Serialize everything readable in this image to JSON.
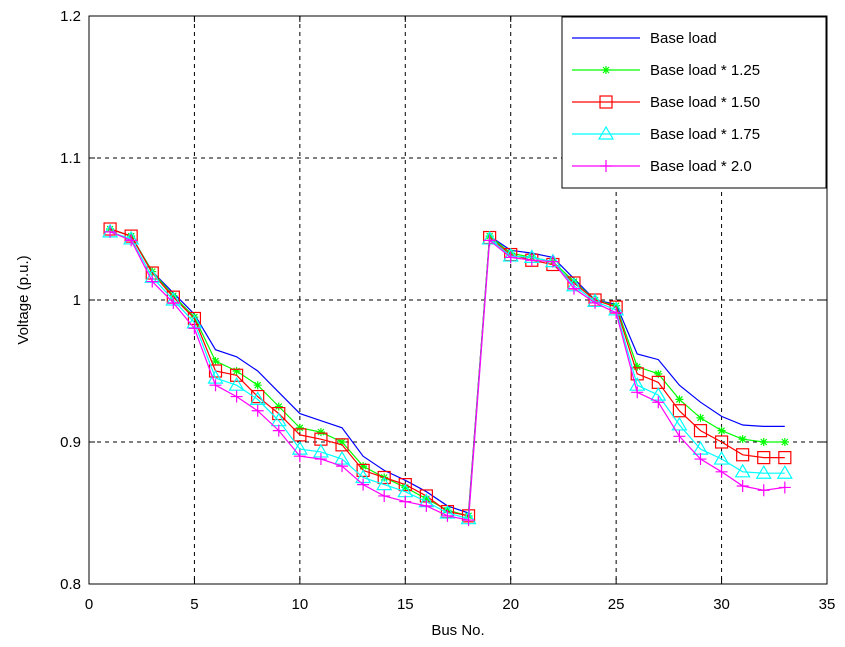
{
  "chart_data": {
    "type": "line",
    "xlabel": "Bus No.",
    "ylabel": "Voltage (p.u.)",
    "xlim": [
      0,
      35
    ],
    "ylim": [
      0.8,
      1.2
    ],
    "xticks": [
      0,
      5,
      10,
      15,
      20,
      25,
      30,
      35
    ],
    "yticks": [
      0.8,
      0.9,
      1,
      1.1,
      1.2
    ],
    "xtick_labels": [
      "0",
      "5",
      "10",
      "15",
      "20",
      "25",
      "30",
      "35"
    ],
    "ytick_labels": [
      "0.8",
      "0.9",
      "1",
      "1.1",
      "1.2"
    ],
    "grid": true,
    "legend_position": "top-right",
    "x": [
      1,
      2,
      3,
      4,
      5,
      6,
      7,
      8,
      9,
      10,
      11,
      12,
      13,
      14,
      15,
      16,
      17,
      18,
      19,
      20,
      21,
      22,
      23,
      24,
      25,
      26,
      27,
      28,
      29,
      30,
      31,
      32,
      33
    ],
    "series": [
      {
        "name": "Base load",
        "color": "#0000ff",
        "marker": "none",
        "values": [
          1.05,
          1.045,
          1.02,
          1.005,
          0.99,
          0.965,
          0.96,
          0.95,
          0.935,
          0.92,
          0.915,
          0.91,
          0.89,
          0.88,
          0.873,
          0.865,
          0.855,
          0.85,
          1.045,
          1.035,
          1.033,
          1.03,
          1.015,
          1.0,
          0.997,
          0.962,
          0.958,
          0.94,
          0.928,
          0.918,
          0.912,
          0.911,
          0.911
        ]
      },
      {
        "name": "Base load * 1.25",
        "color": "#00ff00",
        "marker": "star",
        "values": [
          1.05,
          1.045,
          1.02,
          1.003,
          0.988,
          0.957,
          0.95,
          0.94,
          0.925,
          0.91,
          0.907,
          0.9,
          0.883,
          0.875,
          0.868,
          0.86,
          0.852,
          0.848,
          1.045,
          1.033,
          1.03,
          1.027,
          1.013,
          1.0,
          0.996,
          0.953,
          0.948,
          0.93,
          0.917,
          0.908,
          0.902,
          0.9,
          0.9
        ]
      },
      {
        "name": "Base load * 1.50",
        "color": "#ff0000",
        "marker": "square",
        "values": [
          1.05,
          1.045,
          1.019,
          1.002,
          0.987,
          0.95,
          0.947,
          0.932,
          0.92,
          0.905,
          0.902,
          0.898,
          0.88,
          0.875,
          0.87,
          0.862,
          0.851,
          0.848,
          1.044,
          1.032,
          1.028,
          1.025,
          1.012,
          1.0,
          0.995,
          0.948,
          0.942,
          0.922,
          0.908,
          0.9,
          0.891,
          0.889,
          0.889
        ]
      },
      {
        "name": "Base load * 1.75",
        "color": "#00ffff",
        "marker": "triangle",
        "values": [
          1.048,
          1.043,
          1.016,
          1.0,
          0.984,
          0.945,
          0.94,
          0.93,
          0.915,
          0.895,
          0.893,
          0.888,
          0.875,
          0.87,
          0.865,
          0.858,
          0.85,
          0.846,
          1.043,
          1.031,
          1.03,
          1.027,
          1.01,
          0.999,
          0.993,
          0.94,
          0.933,
          0.912,
          0.895,
          0.888,
          0.879,
          0.878,
          0.878
        ]
      },
      {
        "name": "Base load * 2.0",
        "color": "#ff00ff",
        "marker": "plus",
        "values": [
          1.048,
          1.042,
          1.013,
          0.998,
          0.98,
          0.94,
          0.932,
          0.922,
          0.908,
          0.89,
          0.888,
          0.883,
          0.87,
          0.862,
          0.858,
          0.855,
          0.848,
          0.845,
          1.042,
          1.03,
          1.028,
          1.027,
          1.008,
          0.998,
          0.991,
          0.935,
          0.928,
          0.904,
          0.888,
          0.879,
          0.869,
          0.866,
          0.868
        ]
      }
    ]
  }
}
